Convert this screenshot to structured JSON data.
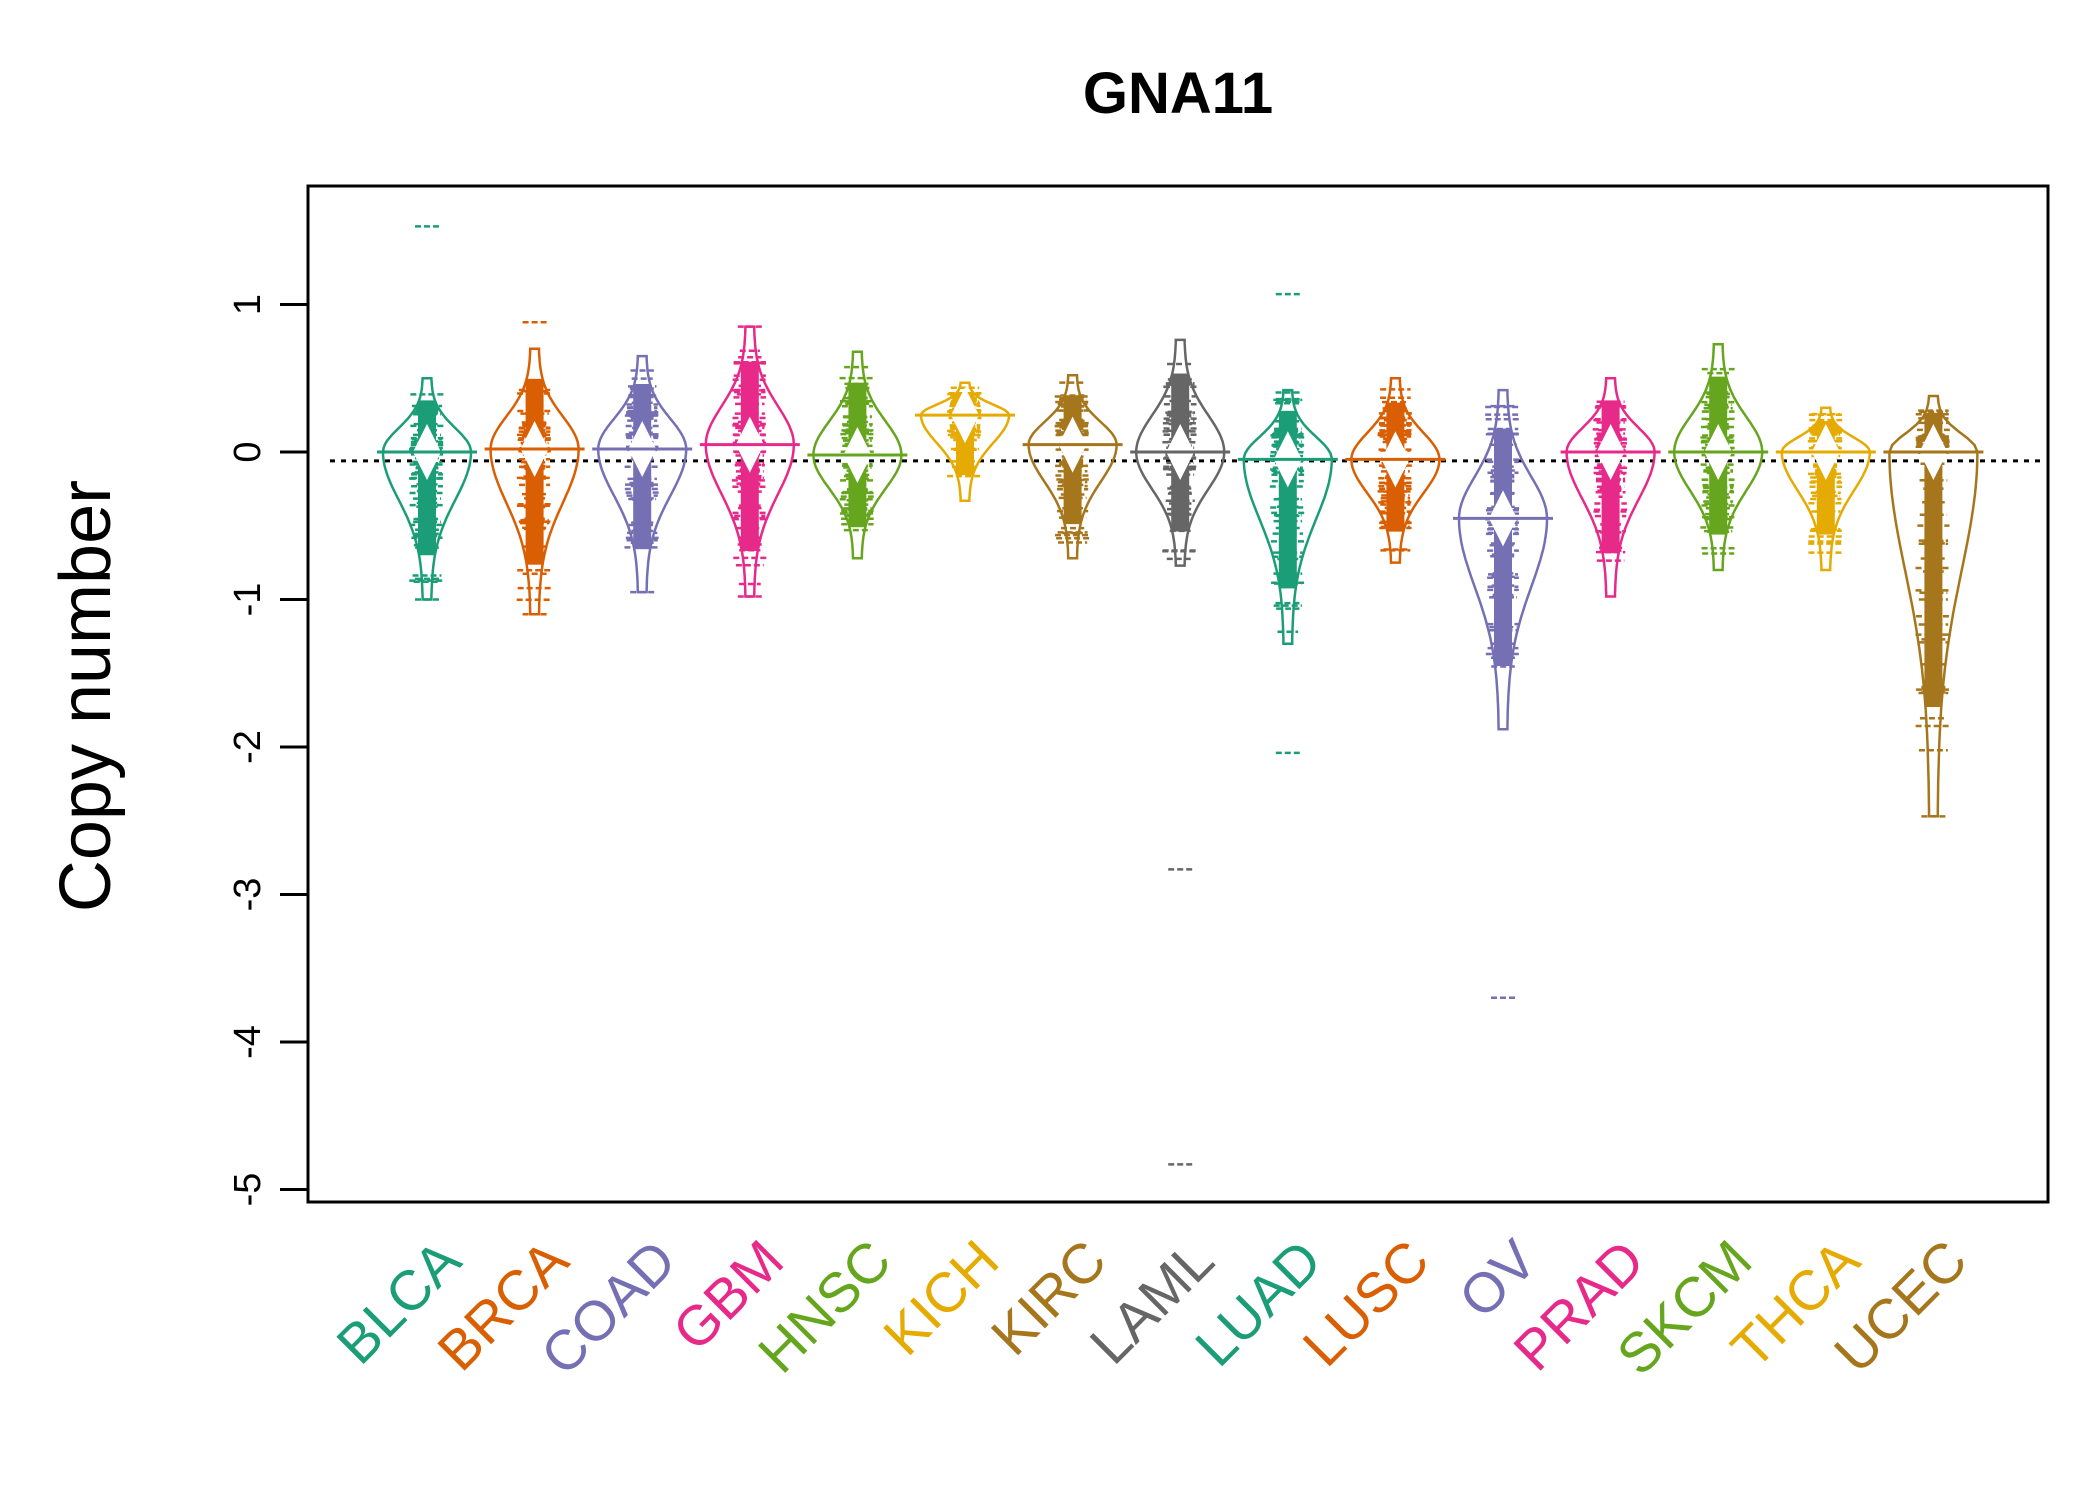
{
  "chart_data": {
    "type": "beanplot",
    "title": "GNA11",
    "ylabel": "Copy number",
    "xlabel": "",
    "ylim": [
      -5.08,
      1.8
    ],
    "yticks": [
      "1",
      "0",
      "-1",
      "-2",
      "-3",
      "-4",
      "-5"
    ],
    "ytick_values": [
      1,
      0,
      -1,
      -2,
      -3,
      -4,
      -5
    ],
    "overall_median": -0.06,
    "grid": false,
    "legend": "none",
    "categories": [
      "BLCA",
      "BRCA",
      "COAD",
      "GBM",
      "HNSC",
      "KICH",
      "KIRC",
      "LAML",
      "LUAD",
      "LUSC",
      "OV",
      "PRAD",
      "SKCM",
      "THCA",
      "UCEC"
    ],
    "colors": [
      "#1B9E77",
      "#D95F02",
      "#7570B3",
      "#E7298A",
      "#66A61E",
      "#E6AB02",
      "#A6761D",
      "#666666",
      "#1B9E77",
      "#D95F02",
      "#7570B3",
      "#E7298A",
      "#66A61E",
      "#E6AB02",
      "#A6761D"
    ],
    "groups": [
      {
        "name": "BLCA",
        "median": 0.0,
        "range": [
          -1.0,
          0.5
        ],
        "outliers": [
          1.53,
          -0.86,
          -1.0
        ]
      },
      {
        "name": "BRCA",
        "median": 0.02,
        "range": [
          -1.1,
          0.7
        ],
        "outliers": [
          0.88,
          -1.1
        ]
      },
      {
        "name": "COAD",
        "median": 0.02,
        "range": [
          -0.95,
          0.65
        ],
        "outliers": [
          -0.95
        ]
      },
      {
        "name": "GBM",
        "median": 0.05,
        "range": [
          -0.98,
          0.85
        ],
        "outliers": [
          0.85,
          -0.98
        ]
      },
      {
        "name": "HNSC",
        "median": -0.02,
        "range": [
          -0.72,
          0.68
        ],
        "outliers": []
      },
      {
        "name": "KICH",
        "median": 0.25,
        "range": [
          -0.33,
          0.47
        ],
        "outliers": []
      },
      {
        "name": "KIRC",
        "median": 0.05,
        "range": [
          -0.72,
          0.52
        ],
        "outliers": []
      },
      {
        "name": "LAML",
        "median": 0.0,
        "range": [
          -0.77,
          0.76
        ],
        "outliers": [
          -2.83,
          -4.83
        ]
      },
      {
        "name": "LUAD",
        "median": -0.05,
        "range": [
          -1.3,
          0.42
        ],
        "outliers": [
          1.07,
          -2.04
        ]
      },
      {
        "name": "LUSC",
        "median": -0.05,
        "range": [
          -0.75,
          0.5
        ],
        "outliers": []
      },
      {
        "name": "OV",
        "median": -0.45,
        "range": [
          -1.88,
          0.42
        ],
        "outliers": [
          -3.7
        ]
      },
      {
        "name": "PRAD",
        "median": 0.0,
        "range": [
          -0.98,
          0.5
        ],
        "outliers": []
      },
      {
        "name": "SKCM",
        "median": 0.0,
        "range": [
          -0.8,
          0.73
        ],
        "outliers": []
      },
      {
        "name": "THCA",
        "median": 0.0,
        "range": [
          -0.8,
          0.3
        ],
        "outliers": []
      },
      {
        "name": "UCEC",
        "median": 0.0,
        "range": [
          -2.47,
          0.38
        ],
        "outliers": [
          -1.27,
          -1.44,
          -1.63,
          -2.47
        ]
      }
    ]
  }
}
